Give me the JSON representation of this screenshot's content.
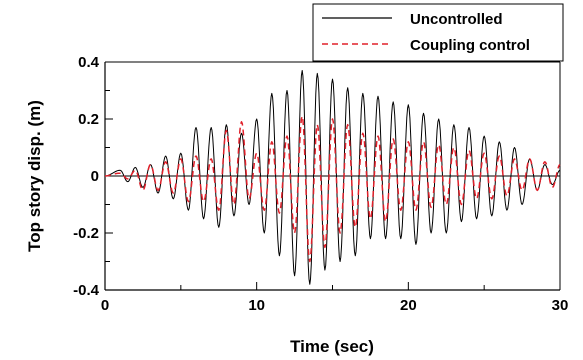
{
  "chart_data": {
    "type": "line",
    "title": "",
    "xlabel": "Time (sec)",
    "ylabel": "Top story disp. (m)",
    "xlim": [
      0,
      30
    ],
    "ylim": [
      -0.4,
      0.4
    ],
    "x_ticks": [
      0,
      10,
      20,
      30
    ],
    "x_tick_labels": [
      "0",
      "10",
      "20",
      "30"
    ],
    "y_ticks": [
      -0.4,
      -0.2,
      0,
      0.2,
      0.4
    ],
    "y_tick_labels": [
      "-0.4",
      "-0.2",
      "0",
      "0.2",
      "0.4"
    ],
    "grid": false,
    "legend_position": "top-right",
    "series": [
      {
        "name": "Uncontrolled",
        "color": "#000000",
        "style": "solid",
        "peaks": [
          [
            0.0,
            0.0
          ],
          [
            1.0,
            0.02
          ],
          [
            1.5,
            -0.02
          ],
          [
            2.0,
            0.03
          ],
          [
            2.5,
            -0.04
          ],
          [
            3.0,
            0.04
          ],
          [
            3.5,
            -0.06
          ],
          [
            4.0,
            0.07
          ],
          [
            4.5,
            -0.08
          ],
          [
            5.0,
            0.08
          ],
          [
            5.5,
            -0.12
          ],
          [
            6.0,
            0.17
          ],
          [
            6.5,
            -0.15
          ],
          [
            7.0,
            0.17
          ],
          [
            7.5,
            -0.18
          ],
          [
            8.0,
            0.18
          ],
          [
            8.5,
            -0.14
          ],
          [
            9.0,
            0.15
          ],
          [
            9.5,
            -0.1
          ],
          [
            10.0,
            0.2
          ],
          [
            10.5,
            -0.2
          ],
          [
            11.0,
            0.29
          ],
          [
            11.5,
            -0.28
          ],
          [
            12.0,
            0.3
          ],
          [
            12.5,
            -0.35
          ],
          [
            13.0,
            0.37
          ],
          [
            13.5,
            -0.38
          ],
          [
            14.0,
            0.36
          ],
          [
            14.5,
            -0.33
          ],
          [
            15.0,
            0.34
          ],
          [
            15.5,
            -0.3
          ],
          [
            16.0,
            0.31
          ],
          [
            16.5,
            -0.28
          ],
          [
            17.0,
            0.29
          ],
          [
            17.5,
            -0.22
          ],
          [
            18.0,
            0.28
          ],
          [
            18.5,
            -0.22
          ],
          [
            19.0,
            0.26
          ],
          [
            19.5,
            -0.22
          ],
          [
            20.0,
            0.25
          ],
          [
            20.5,
            -0.24
          ],
          [
            21.0,
            0.22
          ],
          [
            21.5,
            -0.2
          ],
          [
            22.0,
            0.2
          ],
          [
            22.5,
            -0.2
          ],
          [
            23.0,
            0.18
          ],
          [
            23.5,
            -0.16
          ],
          [
            24.0,
            0.17
          ],
          [
            24.5,
            -0.15
          ],
          [
            25.0,
            0.14
          ],
          [
            25.5,
            -0.14
          ],
          [
            26.0,
            0.12
          ],
          [
            26.5,
            -0.12
          ],
          [
            27.0,
            0.1
          ],
          [
            27.5,
            -0.1
          ],
          [
            28.0,
            0.06
          ],
          [
            28.5,
            -0.05
          ],
          [
            29.0,
            0.04
          ],
          [
            29.5,
            -0.03
          ],
          [
            30.0,
            0.02
          ]
        ]
      },
      {
        "name": "Coupling control",
        "color": "#e0202a",
        "style": "dashed",
        "peaks": [
          [
            0.0,
            0.0
          ],
          [
            1.0,
            0.01
          ],
          [
            1.5,
            -0.01
          ],
          [
            2.0,
            0.02
          ],
          [
            2.5,
            -0.05
          ],
          [
            3.0,
            0.04
          ],
          [
            3.5,
            -0.05
          ],
          [
            4.0,
            0.05
          ],
          [
            4.5,
            -0.06
          ],
          [
            5.0,
            0.06
          ],
          [
            5.5,
            -0.09
          ],
          [
            6.0,
            0.07
          ],
          [
            6.5,
            -0.09
          ],
          [
            7.0,
            0.06
          ],
          [
            7.5,
            -0.12
          ],
          [
            8.0,
            0.16
          ],
          [
            8.5,
            -0.1
          ],
          [
            9.0,
            0.19
          ],
          [
            9.5,
            -0.08
          ],
          [
            10.0,
            0.08
          ],
          [
            10.5,
            -0.12
          ],
          [
            11.0,
            0.12
          ],
          [
            11.5,
            -0.13
          ],
          [
            12.0,
            0.14
          ],
          [
            12.5,
            -0.2
          ],
          [
            13.0,
            0.21
          ],
          [
            13.5,
            -0.3
          ],
          [
            14.0,
            0.18
          ],
          [
            14.5,
            -0.25
          ],
          [
            15.0,
            0.2
          ],
          [
            15.5,
            -0.2
          ],
          [
            16.0,
            0.18
          ],
          [
            16.5,
            -0.18
          ],
          [
            17.0,
            0.15
          ],
          [
            17.5,
            -0.15
          ],
          [
            18.0,
            0.14
          ],
          [
            18.5,
            -0.16
          ],
          [
            19.0,
            0.13
          ],
          [
            19.5,
            -0.12
          ],
          [
            20.0,
            0.12
          ],
          [
            20.5,
            -0.12
          ],
          [
            21.0,
            0.12
          ],
          [
            21.5,
            -0.11
          ],
          [
            22.0,
            0.11
          ],
          [
            22.5,
            -0.1
          ],
          [
            23.0,
            0.1
          ],
          [
            23.5,
            -0.1
          ],
          [
            24.0,
            0.09
          ],
          [
            24.5,
            -0.08
          ],
          [
            25.0,
            0.08
          ],
          [
            25.5,
            -0.08
          ],
          [
            26.0,
            0.07
          ],
          [
            26.5,
            -0.07
          ],
          [
            27.0,
            0.06
          ],
          [
            27.5,
            -0.05
          ],
          [
            28.0,
            0.06
          ],
          [
            28.5,
            -0.05
          ],
          [
            29.0,
            0.05
          ],
          [
            29.5,
            -0.04
          ],
          [
            30.0,
            0.04
          ]
        ]
      }
    ]
  }
}
